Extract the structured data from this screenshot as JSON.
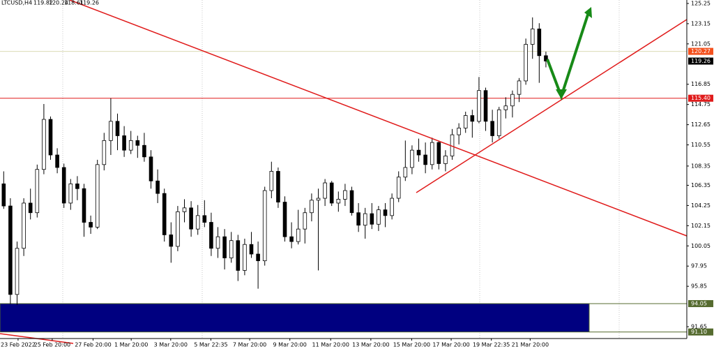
{
  "chart_data": {
    "type": "candlestick",
    "title": "LTCUSD,H4",
    "open": [
      106.5,
      104.2,
      95.0,
      99.8,
      104.5,
      103.5,
      108.0,
      113.2,
      109.5,
      108.2,
      104.5,
      106.5,
      106.0,
      102.5,
      102.0,
      108.5,
      111.0,
      113.0,
      111.5,
      110.0,
      111.0,
      110.5,
      109.3,
      106.8,
      105.5,
      101.2,
      100.0,
      103.6,
      104.0,
      101.8,
      103.2,
      102.5,
      99.8,
      101.0,
      98.8,
      100.6,
      97.5,
      100.2,
      99.2,
      98.5,
      105.8,
      107.8,
      104.6,
      101.0,
      100.5,
      101.8,
      103.5,
      104.8,
      105.0,
      106.6,
      104.5,
      104.9,
      105.8,
      103.5,
      102.2,
      103.4,
      102.3,
      103.8,
      103.2,
      105.0,
      107.2,
      108.2,
      110.0,
      109.5,
      108.5,
      110.8,
      108.6,
      109.4,
      111.6,
      112.3,
      113.6,
      113.0,
      116.2,
      113.0,
      111.5,
      114.2,
      114.6,
      115.8,
      117.2,
      121.0,
      122.6,
      119.82
    ],
    "high": [
      107.8,
      105.0,
      100.5,
      105.0,
      106.0,
      108.5,
      114.8,
      113.5,
      110.2,
      108.6,
      107.0,
      107.3,
      106.5,
      103.2,
      109.0,
      111.8,
      115.4,
      113.8,
      112.5,
      112.0,
      111.5,
      111.8,
      110.0,
      108.0,
      106.0,
      102.5,
      104.2,
      104.9,
      104.7,
      104.3,
      104.8,
      103.5,
      102.0,
      101.8,
      101.5,
      101.2,
      100.8,
      101.5,
      100.5,
      106.2,
      108.8,
      108.2,
      105.2,
      102.5,
      103.8,
      104.0,
      105.5,
      106.0,
      107.0,
      106.8,
      105.7,
      106.5,
      106.2,
      104.5,
      104.0,
      104.5,
      104.2,
      104.5,
      105.5,
      107.8,
      111.0,
      110.5,
      111.2,
      110.8,
      111.3,
      111.0,
      110.0,
      112.2,
      112.8,
      114.0,
      114.2,
      117.6,
      116.5,
      114.2,
      114.5,
      115.5,
      116.2,
      117.5,
      121.6,
      123.8,
      123.2,
      120.24
    ],
    "low": [
      103.9,
      94.0,
      93.9,
      99.0,
      102.8,
      103.0,
      107.5,
      109.0,
      107.6,
      104.0,
      103.8,
      104.8,
      101.0,
      101.3,
      101.8,
      107.9,
      109.5,
      110.0,
      109.3,
      109.6,
      109.2,
      108.8,
      106.0,
      104.5,
      100.5,
      98.3,
      99.5,
      102.5,
      101.0,
      101.2,
      102.0,
      99.0,
      98.8,
      97.6,
      98.3,
      96.4,
      97.0,
      98.8,
      95.6,
      98.0,
      105.0,
      104.0,
      100.5,
      99.8,
      100.2,
      100.3,
      102.6,
      97.5,
      104.2,
      104.2,
      103.6,
      104.2,
      103.2,
      101.5,
      100.8,
      101.8,
      101.6,
      102.0,
      102.8,
      104.6,
      106.8,
      107.5,
      108.8,
      107.6,
      108.0,
      108.0,
      107.8,
      109.0,
      110.6,
      111.8,
      111.3,
      112.8,
      112.0,
      110.8,
      111.2,
      113.3,
      113.4,
      115.0,
      116.8,
      119.5,
      117.0,
      118.61
    ],
    "close": [
      104.2,
      95.0,
      99.8,
      104.5,
      103.5,
      108.0,
      113.2,
      109.5,
      108.2,
      104.5,
      106.5,
      106.0,
      102.5,
      102.0,
      108.5,
      111.0,
      113.0,
      111.5,
      110.0,
      111.0,
      110.5,
      109.3,
      106.8,
      105.5,
      101.2,
      100.0,
      103.6,
      104.0,
      101.8,
      103.2,
      102.5,
      99.8,
      101.0,
      98.8,
      100.6,
      97.5,
      100.2,
      99.2,
      98.5,
      105.8,
      107.8,
      104.6,
      101.0,
      100.5,
      101.8,
      103.5,
      104.8,
      105.0,
      106.6,
      104.5,
      104.9,
      105.8,
      103.5,
      102.2,
      103.4,
      102.3,
      103.8,
      103.2,
      105.0,
      107.2,
      108.2,
      110.0,
      109.5,
      108.5,
      110.8,
      108.6,
      109.4,
      111.6,
      112.3,
      113.6,
      113.0,
      116.2,
      113.0,
      111.5,
      114.2,
      114.6,
      115.8,
      117.2,
      121.0,
      122.6,
      119.82,
      119.26
    ],
    "xlim": [
      -0.5,
      102.1
    ],
    "xticks": [
      {
        "value": 2.2,
        "label": "23 Feb 2022"
      },
      {
        "value": 7.3,
        "label": "25 Feb 20:00"
      },
      {
        "value": 13.4,
        "label": "27 Feb 20:00"
      },
      {
        "value": 19.1,
        "label": "1 Mar 20:00"
      },
      {
        "value": 25,
        "label": "3 Mar 20:00"
      },
      {
        "value": 31,
        "label": "5 Mar 22:35"
      },
      {
        "value": 36.8,
        "label": "7 Mar 20:00"
      },
      {
        "value": 42.8,
        "label": "9 Mar 20:00"
      },
      {
        "value": 48.9,
        "label": "11 Mar 20:00"
      },
      {
        "value": 54.9,
        "label": "13 Mar 20:00"
      },
      {
        "value": 61,
        "label": "15 Mar 20:00"
      },
      {
        "value": 66.9,
        "label": "17 Mar 20:00"
      },
      {
        "value": 72.9,
        "label": "19 Mar 22:35"
      },
      {
        "value": 78.7,
        "label": "21 Mar 20:00"
      }
    ],
    "ylim": [
      90.42,
      125.61
    ],
    "yticks": [
      125.25,
      123.15,
      121.05,
      116.85,
      114.75,
      112.65,
      110.55,
      108.35,
      106.35,
      104.25,
      102.15,
      100.05,
      97.95,
      95.85,
      91.65
    ],
    "levels": [
      120.27,
      119.26,
      {
        "value": 115.4,
        "label": "115.40"
      },
      94.05,
      {
        "value": 91.1,
        "label": "91.10"
      }
    ],
    "level_colors": [
      "#f4511e",
      "#000000",
      "#e01b1b",
      "#556b2f",
      "#556b2f"
    ],
    "zone_color": "#000080",
    "up_color": "#ffffff",
    "down_color": "#000000"
  }
}
